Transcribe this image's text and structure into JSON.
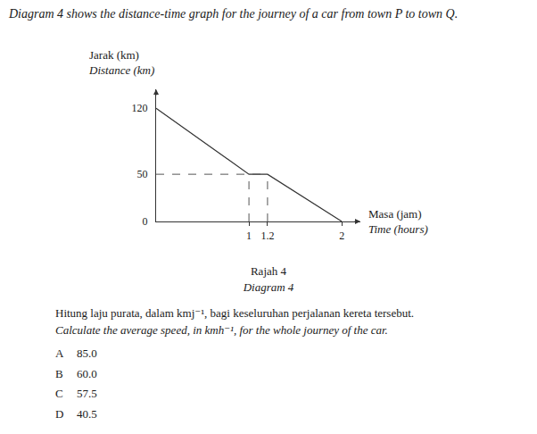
{
  "question": {
    "intro": "Diagram 4 shows the distance-time graph for the journey of a car from town P to town Q.",
    "caption_ms": "Rajah 4",
    "caption_en": "Diagram 4",
    "prompt_ms": "Hitung laju purata, dalam kmj⁻¹, bagi keseluruhan perjalanan kereta tersebut.",
    "prompt_en": "Calculate the average speed, in kmh⁻¹, for the whole journey of the car.",
    "options": [
      {
        "label": "A",
        "text": "85.0"
      },
      {
        "label": "B",
        "text": "60.0"
      },
      {
        "label": "C",
        "text": "57.5"
      },
      {
        "label": "D",
        "text": "40.5"
      }
    ]
  },
  "chart_data": {
    "type": "line",
    "y_label": [
      "Jarak (km)",
      "Distance (km)"
    ],
    "x_label": [
      "Masa (jam)",
      "Time (hours)"
    ],
    "x": [
      0,
      1,
      1.2,
      2
    ],
    "values": [
      120,
      50,
      50,
      0
    ],
    "color": "#333333",
    "xlim": [
      0,
      2.2
    ],
    "ylim": [
      0,
      140
    ],
    "xticks": [
      1,
      1.2,
      2
    ],
    "yticks": [
      0,
      50,
      120
    ],
    "grid": false
  }
}
